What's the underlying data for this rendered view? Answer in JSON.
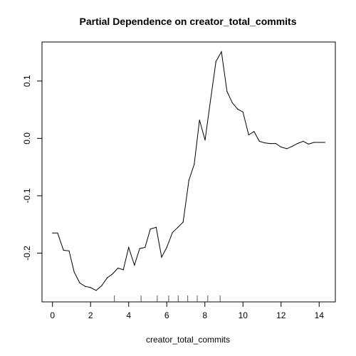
{
  "chart_data": {
    "type": "line",
    "title": "Partial Dependence on creator_total_commits",
    "xlabel": "creator_total_commits",
    "ylabel": "",
    "xlim": [
      -0.55,
      14.85
    ],
    "ylim": [
      -0.285,
      0.168
    ],
    "x_ticks": [
      0,
      2,
      4,
      6,
      8,
      10,
      12,
      14
    ],
    "y_ticks": [
      -0.2,
      -0.1,
      0.0,
      0.1
    ],
    "y_tick_labels": [
      "-0.2",
      "-0.1",
      "0.0",
      "0.1"
    ],
    "grid": false,
    "rug": [
      3.25,
      4.65,
      5.5,
      6.1,
      6.6,
      7.1,
      7.6,
      8.15,
      8.8
    ],
    "series": [
      {
        "x": [
          0.0,
          0.27,
          0.58,
          0.87,
          1.14,
          1.43,
          1.72,
          2.0,
          2.29,
          2.58,
          2.87,
          3.16,
          3.44,
          3.72,
          4.0,
          4.3,
          4.58,
          4.86,
          5.14,
          5.44,
          5.73,
          6.0,
          6.3,
          6.58,
          6.86,
          7.16,
          7.44,
          7.72,
          8.01,
          8.29,
          8.58,
          8.87,
          9.16,
          9.44,
          9.72,
          10.0,
          10.3,
          10.58,
          10.86,
          11.16,
          11.44,
          11.72,
          12.0,
          12.3,
          12.58,
          12.86,
          13.16,
          13.44,
          13.72,
          14.0,
          14.3
        ],
        "y": [
          -0.165,
          -0.165,
          -0.195,
          -0.196,
          -0.233,
          -0.252,
          -0.258,
          -0.26,
          -0.265,
          -0.257,
          -0.243,
          -0.236,
          -0.226,
          -0.229,
          -0.19,
          -0.221,
          -0.192,
          -0.19,
          -0.158,
          -0.155,
          -0.207,
          -0.19,
          -0.164,
          -0.155,
          -0.146,
          -0.073,
          -0.045,
          0.032,
          -0.003,
          0.065,
          0.134,
          0.151,
          0.082,
          0.062,
          0.051,
          0.046,
          0.006,
          0.012,
          -0.005,
          -0.008,
          -0.009,
          -0.009,
          -0.015,
          -0.018,
          -0.014,
          -0.009,
          -0.005,
          -0.01,
          -0.007,
          -0.007,
          -0.007
        ]
      }
    ]
  }
}
